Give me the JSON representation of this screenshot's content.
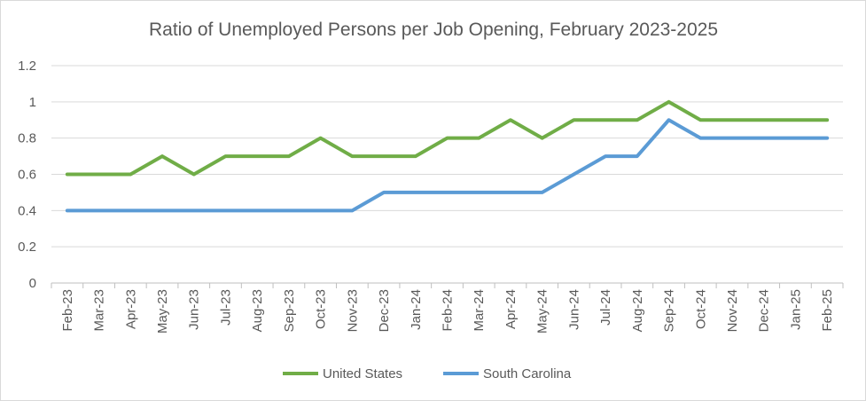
{
  "chart_data": {
    "type": "line",
    "title": "Ratio of Unemployed Persons per Job Opening, February 2023-2025",
    "xlabel": "",
    "ylabel": "",
    "ylim": [
      0,
      1.2
    ],
    "yticks": [
      "0",
      "0.2",
      "0.4",
      "0.6",
      "0.8",
      "1",
      "1.2"
    ],
    "grid": true,
    "legend_position": "bottom",
    "categories": [
      "Feb-23",
      "Mar-23",
      "Apr-23",
      "May-23",
      "Jun-23",
      "Jul-23",
      "Aug-23",
      "Sep-23",
      "Oct-23",
      "Nov-23",
      "Dec-23",
      "Jan-24",
      "Feb-24",
      "Mar-24",
      "Apr-24",
      "May-24",
      "Jun-24",
      "Jul-24",
      "Aug-24",
      "Sep-24",
      "Oct-24",
      "Nov-24",
      "Dec-24",
      "Jan-25",
      "Feb-25"
    ],
    "series": [
      {
        "name": "United States",
        "color": "#70ad47",
        "values": [
          0.6,
          0.6,
          0.6,
          0.7,
          0.6,
          0.7,
          0.7,
          0.7,
          0.8,
          0.7,
          0.7,
          0.7,
          0.8,
          0.8,
          0.9,
          0.8,
          0.9,
          0.9,
          0.9,
          1.0,
          0.9,
          0.9,
          0.9,
          0.9,
          0.9
        ]
      },
      {
        "name": "South Carolina",
        "color": "#5b9bd5",
        "values": [
          0.4,
          0.4,
          0.4,
          0.4,
          0.4,
          0.4,
          0.4,
          0.4,
          0.4,
          0.4,
          0.5,
          0.5,
          0.5,
          0.5,
          0.5,
          0.5,
          0.6,
          0.7,
          0.7,
          0.9,
          0.8,
          0.8,
          0.8,
          0.8,
          0.8
        ]
      }
    ]
  }
}
